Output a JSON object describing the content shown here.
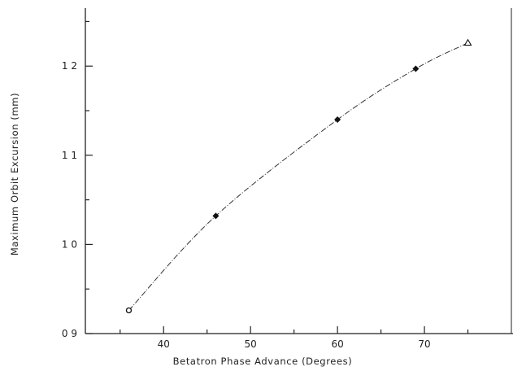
{
  "chart_data": {
    "type": "line",
    "title": "",
    "xlabel": "Betatron Phase Advance (Degrees)",
    "ylabel": "Maximum Orbit Excursion (mm)",
    "xlim": [
      31,
      80
    ],
    "ylim": [
      0.9,
      1.265
    ],
    "x_ticks": [
      40,
      50,
      60,
      70
    ],
    "y_ticks": [
      0.9,
      1.0,
      1.1,
      1.2
    ],
    "x_tick_labels": [
      "40",
      "50",
      "60",
      "70"
    ],
    "y_tick_labels": [
      "0 9",
      "1 0",
      "1 1",
      "1 2"
    ],
    "grid": false,
    "legend": "none",
    "line_style": "dashed",
    "series": [
      {
        "x": [
          36,
          46,
          60,
          69,
          75
        ],
        "y": [
          0.926,
          1.032,
          1.14,
          1.197,
          1.226
        ],
        "markers": [
          "circle-open",
          "diamond",
          "diamond",
          "diamond",
          "triangle"
        ]
      }
    ],
    "colors": {
      "line": "#333333",
      "marker": "#111111",
      "axis": "#222222"
    }
  }
}
